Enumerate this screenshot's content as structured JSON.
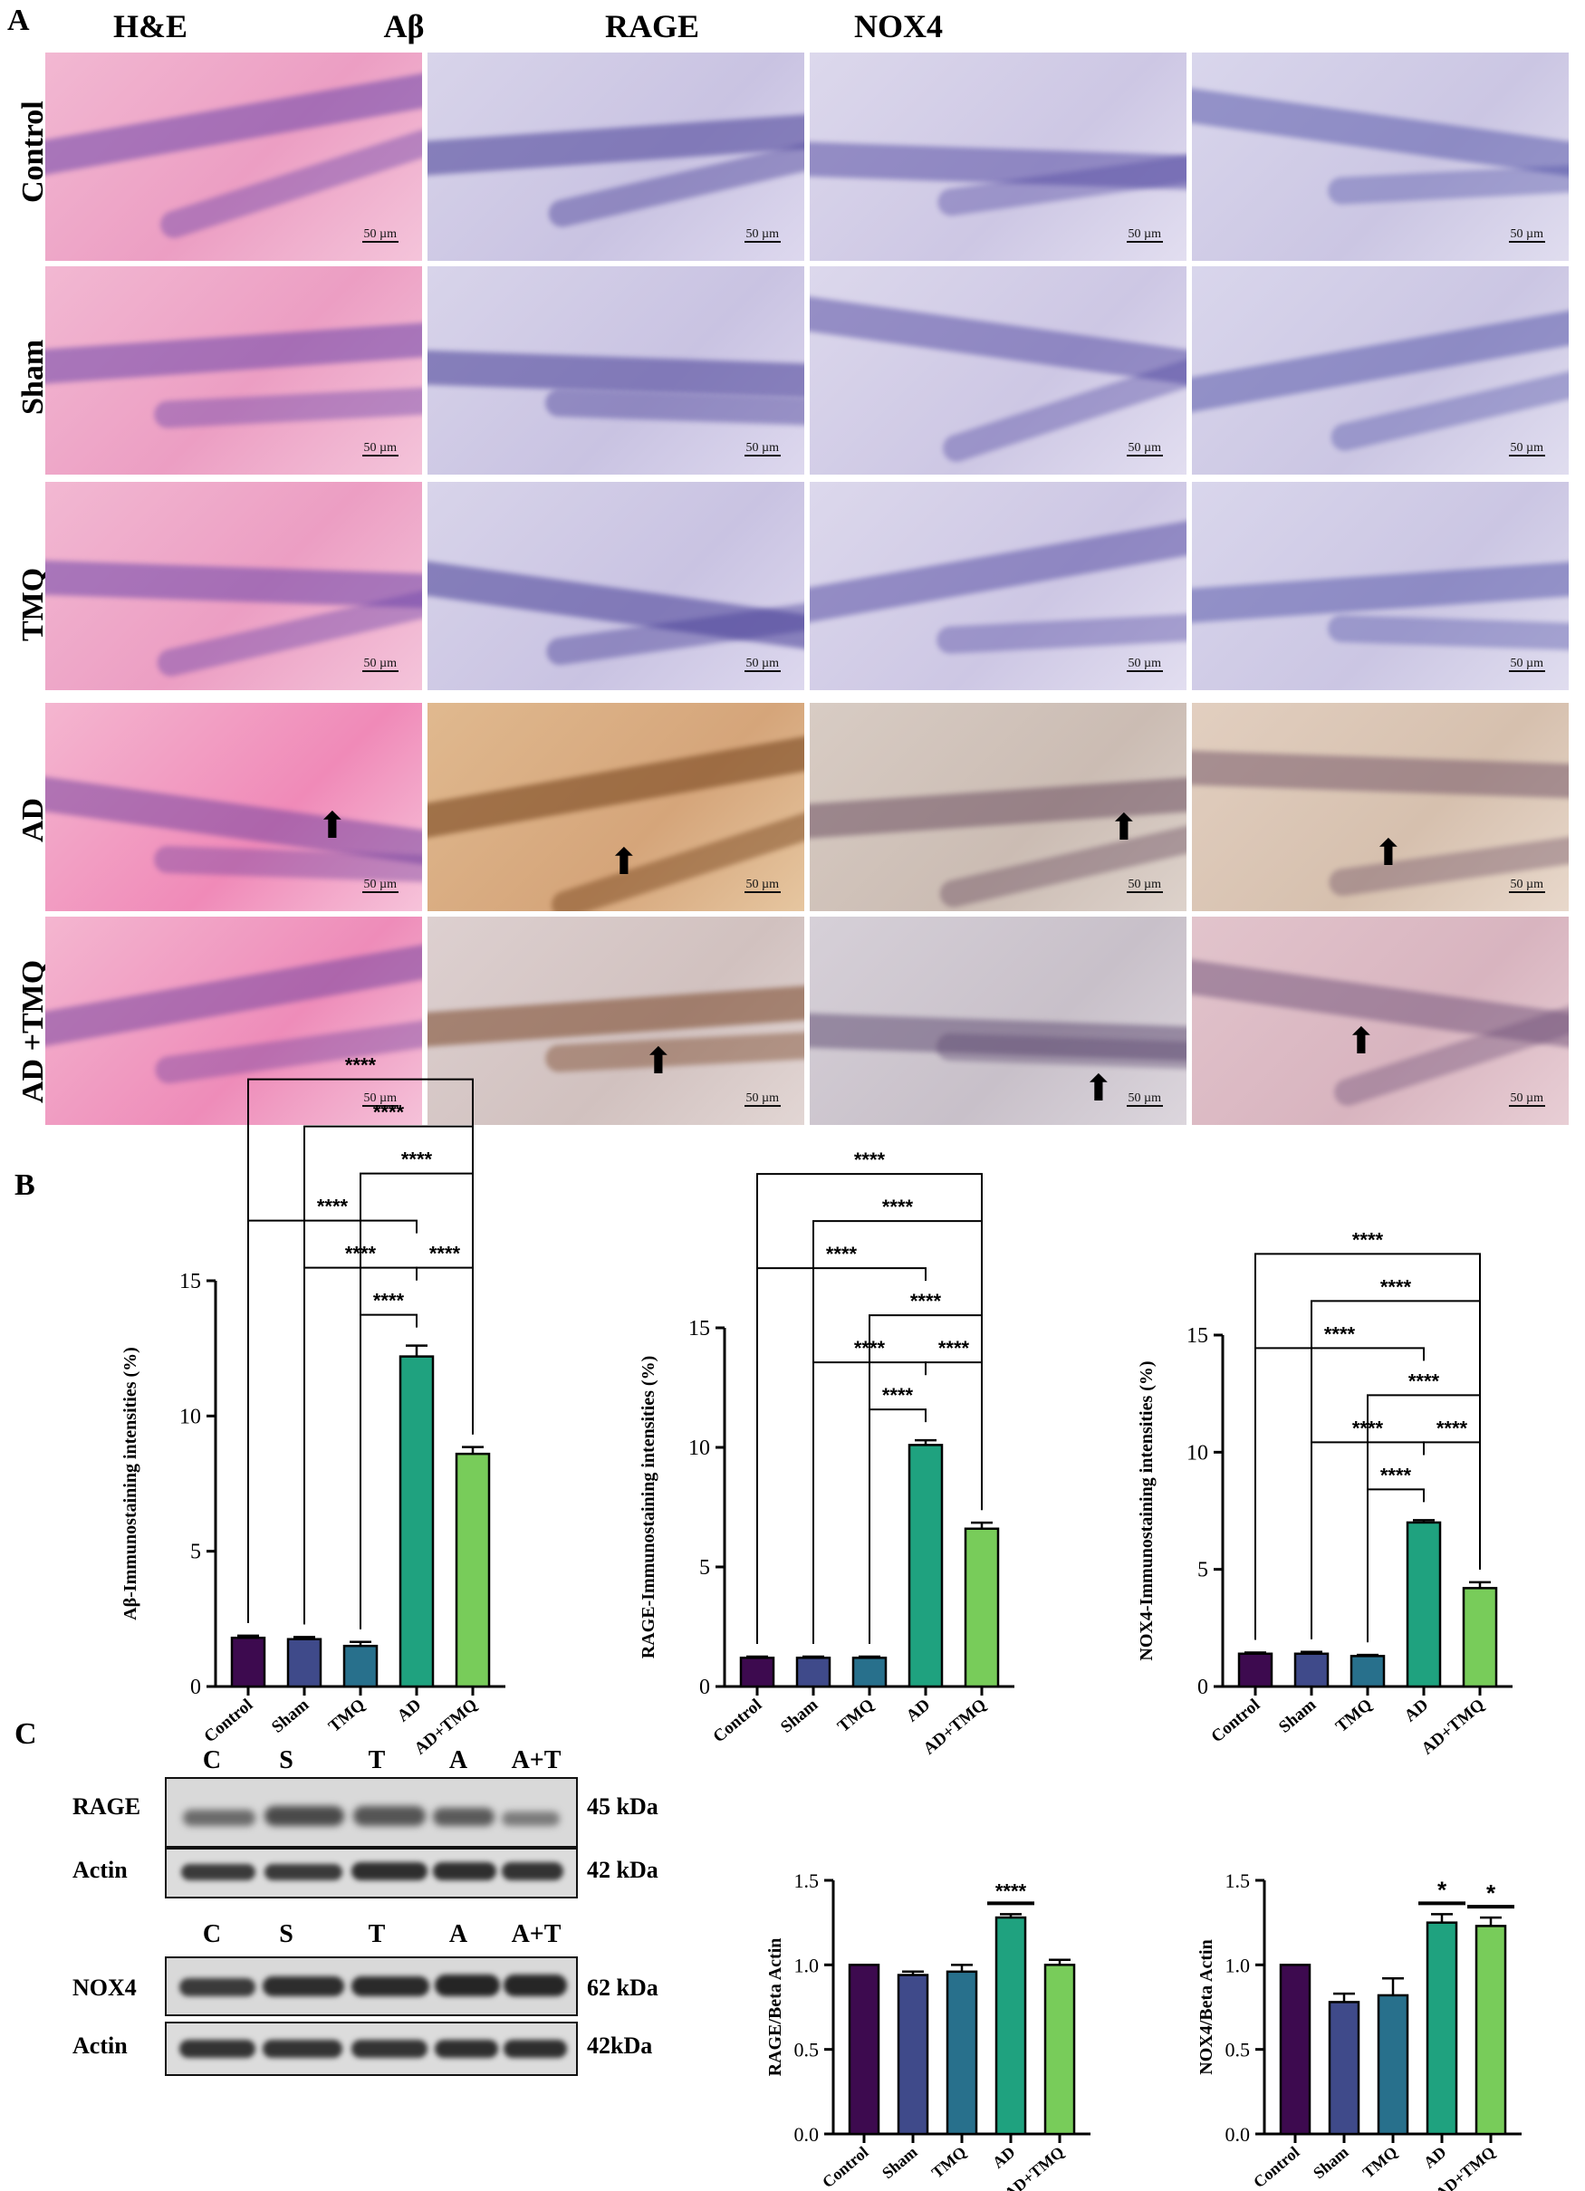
{
  "panel_a": {
    "letter": "A",
    "columns": [
      "H&E",
      "Aβ",
      "RAGE",
      "NOX4"
    ],
    "rows": [
      "Control",
      "Sham",
      "TMQ",
      "AD",
      "AD +TMQ"
    ],
    "scale_bar": "50 µm"
  },
  "panel_b": {
    "letter": "B"
  },
  "panel_c": {
    "letter": "C",
    "blot_top": {
      "lanes": [
        "C",
        "S",
        "T",
        "A",
        "A+T"
      ],
      "rows": [
        {
          "label": "RAGE",
          "kda": "45 kDa"
        },
        {
          "label": "Actin",
          "kda": "42 kDa"
        }
      ]
    },
    "blot_bottom": {
      "lanes": [
        "C",
        "S",
        "T",
        "A",
        "A+T"
      ],
      "rows": [
        {
          "label": "NOX4",
          "kda": "62 kDa"
        },
        {
          "label": "Actin",
          "kda": "42kDa"
        }
      ]
    }
  },
  "colors": {
    "control": "#3d0a4f",
    "sham": "#3f4a8a",
    "tmq": "#28708c",
    "ad": "#1fa27f",
    "ad_tmq": "#78cc5a"
  },
  "chart_data": [
    {
      "type": "bar",
      "categories": [
        "Control",
        "Sham",
        "TMQ",
        "AD",
        "AD+TMQ"
      ],
      "values": [
        1.8,
        1.75,
        1.5,
        12.2,
        8.6
      ],
      "errors": [
        0.08,
        0.08,
        0.15,
        0.4,
        0.25
      ],
      "ylabel": "Aβ-Immunostaining intensities (%)",
      "ylim": [
        0,
        15
      ],
      "yticks": [
        "0",
        "5",
        "10",
        "15"
      ],
      "significance": [
        {
          "from": "TMQ",
          "to": "AD",
          "label": "****"
        },
        {
          "from": "Sham",
          "to": "AD",
          "label": "****"
        },
        {
          "from": "AD",
          "to": "AD+TMQ",
          "label": "****"
        },
        {
          "from": "Control",
          "to": "AD",
          "label": "****"
        },
        {
          "from": "TMQ",
          "to": "AD+TMQ",
          "label": "****"
        },
        {
          "from": "Sham",
          "to": "AD+TMQ",
          "label": "****"
        },
        {
          "from": "Control",
          "to": "AD+TMQ",
          "label": "****"
        }
      ]
    },
    {
      "type": "bar",
      "categories": [
        "Control",
        "Sham",
        "TMQ",
        "AD",
        "AD+TMQ"
      ],
      "values": [
        1.2,
        1.2,
        1.2,
        10.1,
        6.6
      ],
      "errors": [
        0.05,
        0.05,
        0.05,
        0.2,
        0.25
      ],
      "ylabel": "RAGE-Immunostaining intensities (%)",
      "ylim": [
        0,
        15
      ],
      "yticks": [
        "0",
        "5",
        "10",
        "15"
      ],
      "significance": [
        {
          "from": "TMQ",
          "to": "AD",
          "label": "****"
        },
        {
          "from": "Sham",
          "to": "AD",
          "label": "****"
        },
        {
          "from": "AD",
          "to": "AD+TMQ",
          "label": "****"
        },
        {
          "from": "TMQ",
          "to": "AD+TMQ",
          "label": "****"
        },
        {
          "from": "Control",
          "to": "AD",
          "label": "****"
        },
        {
          "from": "Sham",
          "to": "AD+TMQ",
          "label": "****"
        },
        {
          "from": "Control",
          "to": "AD+TMQ",
          "label": "****"
        }
      ]
    },
    {
      "type": "bar",
      "categories": [
        "Control",
        "Sham",
        "TMQ",
        "AD",
        "AD+TMQ"
      ],
      "values": [
        1.4,
        1.4,
        1.3,
        7.0,
        4.2
      ],
      "errors": [
        0.05,
        0.08,
        0.05,
        0.1,
        0.25
      ],
      "ylabel": "NOX4-Immunostaining intensities (%)",
      "ylim": [
        0,
        15
      ],
      "yticks": [
        "0",
        "5",
        "10",
        "15"
      ],
      "significance": [
        {
          "from": "TMQ",
          "to": "AD",
          "label": "****"
        },
        {
          "from": "Sham",
          "to": "AD",
          "label": "****"
        },
        {
          "from": "AD",
          "to": "AD+TMQ",
          "label": "****"
        },
        {
          "from": "TMQ",
          "to": "AD+TMQ",
          "label": "****"
        },
        {
          "from": "Control",
          "to": "AD",
          "label": "****"
        },
        {
          "from": "Sham",
          "to": "AD+TMQ",
          "label": "****"
        },
        {
          "from": "Control",
          "to": "AD+TMQ",
          "label": "****"
        }
      ]
    },
    {
      "type": "bar",
      "categories": [
        "Control",
        "Sham",
        "TMQ",
        "AD",
        "AD+TMQ"
      ],
      "values": [
        1.0,
        0.94,
        0.96,
        1.28,
        1.0
      ],
      "errors": [
        0,
        0.02,
        0.04,
        0.02,
        0.03
      ],
      "ylabel": "RAGE/Beta Actin",
      "ylim": [
        0,
        1.5
      ],
      "yticks": [
        "0.0",
        "0.5",
        "1.0",
        "1.5"
      ],
      "significance": [
        {
          "over": "AD",
          "label": "****"
        }
      ]
    },
    {
      "type": "bar",
      "categories": [
        "Control",
        "Sham",
        "TMQ",
        "AD",
        "AD+TMQ"
      ],
      "values": [
        1.0,
        0.78,
        0.82,
        1.25,
        1.23
      ],
      "errors": [
        0,
        0.05,
        0.1,
        0.05,
        0.05
      ],
      "ylabel": "NOX4/Beta Actin",
      "ylim": [
        0,
        1.5
      ],
      "yticks": [
        "0.0",
        "0.5",
        "1.0",
        "1.5"
      ],
      "significance": [
        {
          "over": "AD",
          "label": "*"
        },
        {
          "over": "AD+TMQ",
          "label": "*"
        }
      ]
    }
  ]
}
